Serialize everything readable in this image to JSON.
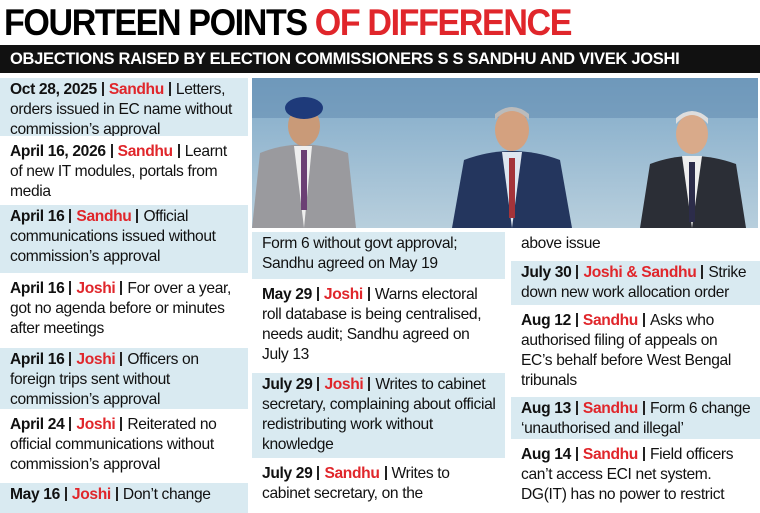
{
  "header": {
    "title_black": "FOURTEEN POINTS",
    "title_red": "OF DIFFERENCE",
    "subtitle": "OBJECTIONS RAISED BY ELECTION COMMISSIONERS S S SANDHU AND VIVEK JOSHI"
  },
  "columns": [
    {
      "entries": [
        {
          "date": "Oct 28, 2025",
          "name": "Sandhu",
          "text": "Letters, orders issued in EC name without commission’s approval"
        },
        {
          "date": "April 16, 2026",
          "name": "Sandhu",
          "text": "Learnt of new IT modules, portals from media"
        },
        {
          "date": "April 16",
          "name": "Sandhu",
          "text": "Official communications issued without commission’s approval"
        },
        {
          "date": "April 16",
          "name": "Joshi",
          "text": "For over a year, got no agenda before or minutes after meetings"
        },
        {
          "date": "April 16",
          "name": "Joshi",
          "text": "Officers on foreign trips sent without commission’s approval"
        },
        {
          "date": "April 24",
          "name": "Joshi",
          "text": "Reiterated no official communications without commission’s approval"
        },
        {
          "date": "May 16",
          "name": "Joshi",
          "text": "Don’t change"
        }
      ]
    },
    {
      "entries": [
        {
          "text": "Form 6 without govt approval; Sandhu agreed on May 19"
        },
        {
          "date": "May 29",
          "name": "Joshi",
          "text": "Warns electoral roll database is being centralised, needs audit; Sandhu agreed on July 13"
        },
        {
          "date": "July 29",
          "name": "Joshi",
          "text": "Writes to cabinet secretary, complaining about official redistributing work without knowledge"
        },
        {
          "date": "July 29",
          "name": "Sandhu",
          "text": "Writes to cabinet secretary, on the"
        }
      ]
    },
    {
      "entries": [
        {
          "text": "above issue"
        },
        {
          "date": "July 30",
          "name": "Joshi & Sandhu",
          "text": "Strike down new work allocation order"
        },
        {
          "date": "Aug 12",
          "name": "Sandhu",
          "text": "Asks who authorised filing of appeals on EC’s behalf before West Bengal tribunals"
        },
        {
          "date": "Aug 13",
          "name": "Sandhu",
          "text": "Form 6 change ‘unauthorised and illegal’"
        },
        {
          "date": "Aug 14",
          "name": "Sandhu",
          "text": "Field officers can’t access ECI net system. DG(IT) has no power to restrict"
        }
      ]
    }
  ]
}
